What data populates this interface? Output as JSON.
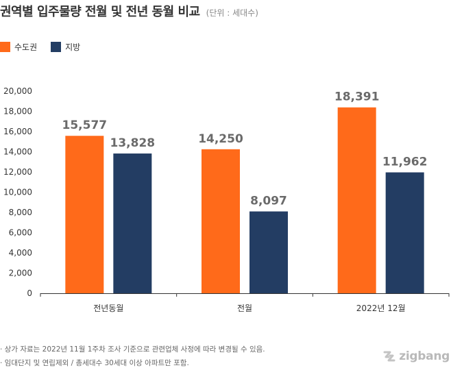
{
  "title": "권역별 입주물량 전월 및 전년 동월 비교",
  "subtitle": "(단위 : 세대수)",
  "legend": [
    {
      "label": "수도권",
      "color": "#ff6a1a"
    },
    {
      "label": "지방",
      "color": "#233d63"
    }
  ],
  "chart_data": {
    "type": "bar",
    "categories": [
      "전년동월",
      "전월",
      "2022년 12월"
    ],
    "series": [
      {
        "name": "수도권",
        "color": "#ff6a1a",
        "values": [
          15577,
          14250,
          18391
        ],
        "labels": [
          "15,577",
          "14,250",
          "18,391"
        ]
      },
      {
        "name": "지방",
        "color": "#233d63",
        "values": [
          13828,
          8097,
          11962
        ],
        "labels": [
          "13,828",
          "8,097",
          "11,962"
        ]
      }
    ],
    "ylim": [
      0,
      20000
    ],
    "yticks": [
      0,
      2000,
      4000,
      6000,
      8000,
      10000,
      12000,
      14000,
      16000,
      18000,
      20000
    ],
    "ytick_labels": [
      "0",
      "2,000",
      "4,000",
      "6,000",
      "8,000",
      "10,000",
      "12,000",
      "14,000",
      "16,000",
      "18,000",
      "20,000"
    ],
    "grid": false,
    "legend_position": "top-left"
  },
  "notes": [
    "· 상가 자료는 2022년 11월 1주차 조사 기준으로 관련업체 사정에 따라 변경될 수 있음.",
    "· 임대단지 및 연립제외 / 총세대수 30세대 이상 아파트만 포함."
  ],
  "logo": {
    "text": "zigbang"
  }
}
